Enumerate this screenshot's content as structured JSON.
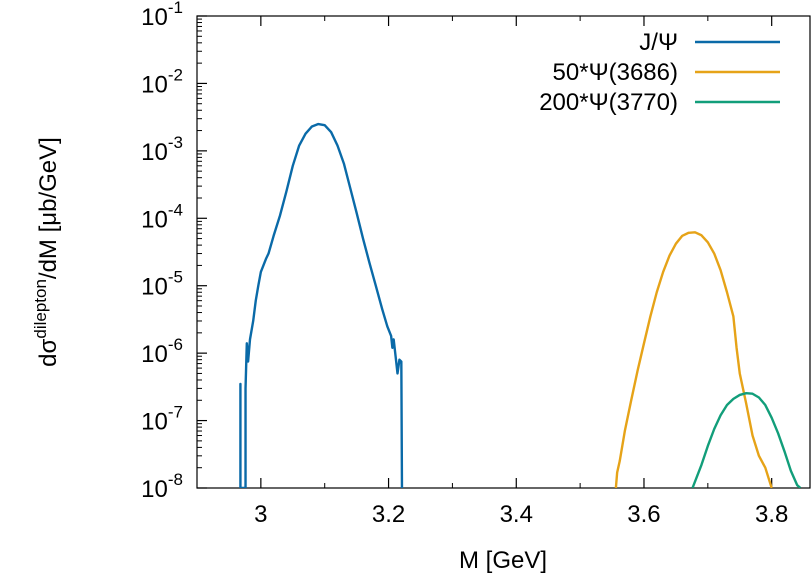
{
  "chart_data": {
    "type": "line",
    "xlabel": "M [GeV]",
    "ylabel": {
      "prefix": "dσ",
      "superscript": "dilepton",
      "suffix": "/dM [μb/GeV]"
    },
    "xlim": [
      2.9,
      3.86
    ],
    "ylim": [
      1e-08,
      0.1
    ],
    "yscale": "log",
    "grid": false,
    "legend_position": "top-right",
    "x_ticks": [
      {
        "value": 3.0,
        "label": "3"
      },
      {
        "value": 3.2,
        "label": "3.2"
      },
      {
        "value": 3.4,
        "label": "3.4"
      },
      {
        "value": 3.6,
        "label": "3.6"
      },
      {
        "value": 3.8,
        "label": "3.8"
      }
    ],
    "y_ticks": [
      {
        "value": 1e-08,
        "base": "10",
        "exp": "-8"
      },
      {
        "value": 1e-07,
        "base": "10",
        "exp": "-7"
      },
      {
        "value": 1e-06,
        "base": "10",
        "exp": "-6"
      },
      {
        "value": 1e-05,
        "base": "10",
        "exp": "-5"
      },
      {
        "value": 0.0001,
        "base": "10",
        "exp": "-4"
      },
      {
        "value": 0.001,
        "base": "10",
        "exp": "-3"
      },
      {
        "value": 0.01,
        "base": "10",
        "exp": "-2"
      },
      {
        "value": 0.1,
        "base": "10",
        "exp": "-1"
      }
    ],
    "series": [
      {
        "name": "J/Ψ",
        "color": "#0a6aa8",
        "points": [
          [
            2.968,
            1e-08
          ],
          [
            2.968,
            3.5e-07
          ],
          [
            2.968,
            1e-08
          ],
          [
            2.976,
            1e-08
          ],
          [
            2.976,
            3e-07
          ],
          [
            2.978,
            1.4e-06
          ],
          [
            2.98,
            7.5e-07
          ],
          [
            2.983,
            1.6e-06
          ],
          [
            2.988,
            3e-06
          ],
          [
            2.992,
            6e-06
          ],
          [
            2.996,
            1e-05
          ],
          [
            3.0,
            1.6e-05
          ],
          [
            3.004,
            2e-05
          ],
          [
            3.008,
            2.5e-05
          ],
          [
            3.012,
            3e-05
          ],
          [
            3.02,
            5.5e-05
          ],
          [
            3.03,
            0.00011
          ],
          [
            3.04,
            0.00025
          ],
          [
            3.05,
            0.0006
          ],
          [
            3.06,
            0.0012
          ],
          [
            3.07,
            0.0018
          ],
          [
            3.08,
            0.0023
          ],
          [
            3.09,
            0.0025
          ],
          [
            3.1,
            0.0024
          ],
          [
            3.11,
            0.0019
          ],
          [
            3.12,
            0.0012
          ],
          [
            3.13,
            0.00065
          ],
          [
            3.14,
            0.00028
          ],
          [
            3.15,
            0.00012
          ],
          [
            3.16,
            5e-05
          ],
          [
            3.17,
            2.2e-05
          ],
          [
            3.18,
            1e-05
          ],
          [
            3.19,
            4.5e-06
          ],
          [
            3.198,
            2.5e-06
          ],
          [
            3.204,
            1.8e-06
          ],
          [
            3.206,
            1.2e-06
          ],
          [
            3.208,
            1.6e-06
          ],
          [
            3.211,
            9e-07
          ],
          [
            3.214,
            5e-07
          ],
          [
            3.217,
            8e-07
          ],
          [
            3.22,
            7.5e-07
          ],
          [
            3.221,
            1e-08
          ]
        ]
      },
      {
        "name": "50*Ψ(3686)",
        "color": "#e6a318",
        "points": [
          [
            3.556,
            1e-08
          ],
          [
            3.558,
            1.7e-08
          ],
          [
            3.562,
            2.5e-08
          ],
          [
            3.57,
            7e-08
          ],
          [
            3.58,
            2e-07
          ],
          [
            3.59,
            5.5e-07
          ],
          [
            3.6,
            1.4e-06
          ],
          [
            3.61,
            3.5e-06
          ],
          [
            3.62,
            8e-06
          ],
          [
            3.63,
            1.6e-05
          ],
          [
            3.64,
            2.8e-05
          ],
          [
            3.65,
            4.2e-05
          ],
          [
            3.66,
            5.5e-05
          ],
          [
            3.67,
            6.1e-05
          ],
          [
            3.68,
            6.2e-05
          ],
          [
            3.69,
            5.6e-05
          ],
          [
            3.7,
            4.4e-05
          ],
          [
            3.71,
            3e-05
          ],
          [
            3.72,
            1.7e-05
          ],
          [
            3.73,
            8e-06
          ],
          [
            3.74,
            3.5e-06
          ],
          [
            3.745,
            1.2e-06
          ],
          [
            3.75,
            5e-07
          ],
          [
            3.76,
            1.8e-07
          ],
          [
            3.77,
            6e-08
          ],
          [
            3.78,
            3e-08
          ],
          [
            3.79,
            2e-08
          ],
          [
            3.8,
            1e-08
          ]
        ]
      },
      {
        "name": "200*Ψ(3770)",
        "color": "#129e7a",
        "points": [
          [
            3.676,
            1e-08
          ],
          [
            3.69,
            2.2e-08
          ],
          [
            3.7,
            4.2e-08
          ],
          [
            3.71,
            7.5e-08
          ],
          [
            3.72,
            1.2e-07
          ],
          [
            3.73,
            1.7e-07
          ],
          [
            3.74,
            2.1e-07
          ],
          [
            3.75,
            2.4e-07
          ],
          [
            3.76,
            2.55e-07
          ],
          [
            3.77,
            2.5e-07
          ],
          [
            3.78,
            2.2e-07
          ],
          [
            3.79,
            1.7e-07
          ],
          [
            3.8,
            1.1e-07
          ],
          [
            3.81,
            6.5e-08
          ],
          [
            3.82,
            3.5e-08
          ],
          [
            3.83,
            1.8e-08
          ],
          [
            3.84,
            1.1e-08
          ],
          [
            3.845,
            1e-08
          ]
        ]
      }
    ]
  }
}
